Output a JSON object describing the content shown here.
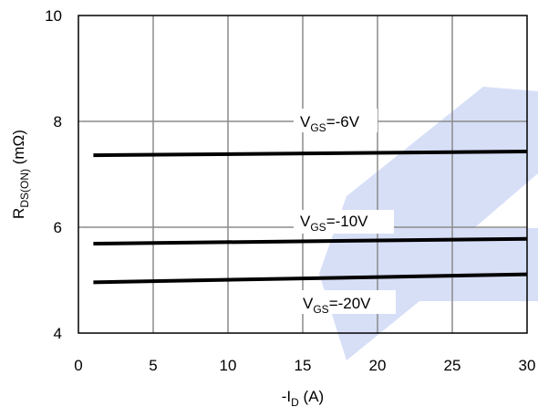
{
  "chart_data": {
    "type": "line",
    "xlabel": {
      "prefix": "-I",
      "sub": "D",
      "suffix": " (A)"
    },
    "ylabel": {
      "prefix": "R",
      "sub": "DS(ON)",
      "suffix": " (mΩ)"
    },
    "xlim": [
      0,
      30
    ],
    "ylim": [
      4,
      10
    ],
    "xticks": [
      "0",
      "5",
      "10",
      "15",
      "20",
      "25",
      "30"
    ],
    "yticks": [
      "4",
      "6",
      "8",
      "10"
    ],
    "grid": true,
    "series": [
      {
        "name": "V_GS=-6V",
        "label_prefix": "V",
        "label_sub": "GS",
        "label_suffix": "=-6V",
        "x": [
          1,
          30
        ],
        "y": [
          7.36,
          7.43
        ]
      },
      {
        "name": "V_GS=-10V",
        "label_prefix": "V",
        "label_sub": "GS",
        "label_suffix": "=-10V",
        "x": [
          1,
          30
        ],
        "y": [
          5.69,
          5.78
        ]
      },
      {
        "name": "V_GS=-20V",
        "label_prefix": "V",
        "label_sub": "GS",
        "label_suffix": "=-20V",
        "x": [
          1,
          30
        ],
        "y": [
          4.96,
          5.11
        ]
      }
    ],
    "line_color": "#000000",
    "grid_color": "#8c8c8c",
    "watermark_color": "#4a6fdc"
  }
}
